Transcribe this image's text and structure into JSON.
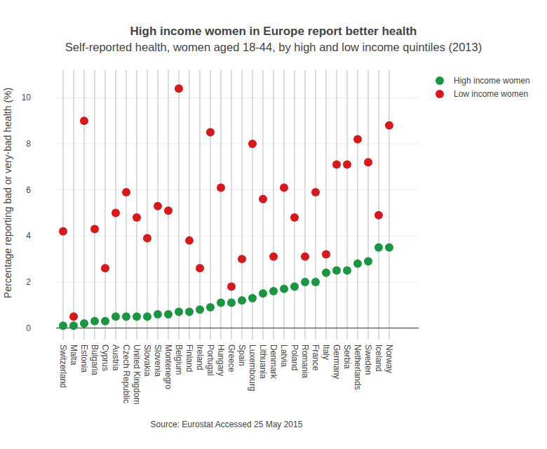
{
  "chart_data": {
    "type": "scatter",
    "title": "High income women in Europe report better health",
    "subtitle": "Self-reported health, women aged 18-44, by high and low income quintiles (2013)",
    "ylabel": "Percentage reporting bad or very-bad health (%)",
    "annotations": [
      "Source: Eurostat Accessed 25 May 2015"
    ],
    "categories": [
      "Switzerland",
      "Malta",
      "Estonia",
      "Bulgaria",
      "Cyprus",
      "Austria",
      "Czech Republic",
      "United Kingdom",
      "Slovakia",
      "Slovenia",
      "Montenegro",
      "Belgium",
      "Finland",
      "Ireland",
      "Portugal",
      "Hungary",
      "Greece",
      "Spain",
      "Luxembourg",
      "Lithuania",
      "Denmark",
      "Latvia",
      "Poland",
      "Romania",
      "France",
      "Italy",
      "Germany",
      "Serbia",
      "Netherlands",
      "Sweden",
      "Iceland",
      "Norway"
    ],
    "series": [
      {
        "name": "High income women",
        "color": "#1a9641",
        "marker": "circle",
        "values": [
          0.1,
          0.1,
          0.2,
          0.3,
          0.3,
          0.5,
          0.5,
          0.5,
          0.5,
          0.6,
          0.6,
          0.7,
          0.7,
          0.8,
          0.9,
          1.1,
          1.1,
          1.2,
          1.3,
          1.5,
          1.6,
          1.7,
          1.8,
          2.0,
          2.0,
          2.4,
          2.5,
          2.5,
          2.8,
          2.9,
          3.5,
          3.5
        ]
      },
      {
        "name": "Low income women",
        "color": "#d7191c",
        "marker": "circle",
        "values": [
          4.2,
          0.5,
          9.0,
          4.3,
          2.6,
          5.0,
          5.9,
          4.8,
          3.9,
          5.3,
          5.1,
          10.4,
          3.8,
          2.6,
          8.5,
          6.1,
          1.8,
          3.0,
          8.0,
          5.6,
          3.1,
          6.1,
          4.8,
          3.1,
          5.9,
          3.2,
          7.1,
          7.1,
          8.2,
          7.2,
          4.9,
          8.8
        ]
      }
    ],
    "ylim": [
      -0.5,
      11.2
    ],
    "yticks": [
      0,
      2,
      4,
      6,
      8,
      10
    ],
    "grid": true,
    "legend": "top-right"
  }
}
